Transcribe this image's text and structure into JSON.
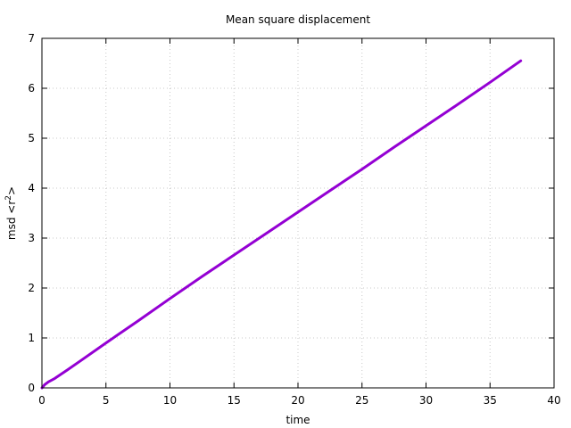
{
  "chart_data": {
    "type": "line",
    "title": "Mean square displacement",
    "xlabel": "time",
    "ylabel_base": "msd <r",
    "ylabel_sup": "2",
    "ylabel_end": ">",
    "xlim": [
      0,
      40
    ],
    "ylim": [
      0,
      7
    ],
    "xticks": [
      0,
      5,
      10,
      15,
      20,
      25,
      30,
      35,
      40
    ],
    "yticks": [
      0,
      1,
      2,
      3,
      4,
      5,
      6,
      7
    ],
    "grid": true,
    "series": [
      {
        "color": "#9400d3",
        "x": [
          0,
          0.2,
          0.5,
          1,
          2,
          3,
          5,
          7.5,
          10,
          12.5,
          15,
          17.5,
          20,
          22.5,
          25,
          27.5,
          30,
          32.5,
          35,
          37.4
        ],
        "y": [
          0,
          0.06,
          0.12,
          0.19,
          0.36,
          0.54,
          0.9,
          1.34,
          1.79,
          2.23,
          2.66,
          3.09,
          3.52,
          3.95,
          4.38,
          4.82,
          5.25,
          5.68,
          6.12,
          6.55
        ]
      }
    ]
  }
}
